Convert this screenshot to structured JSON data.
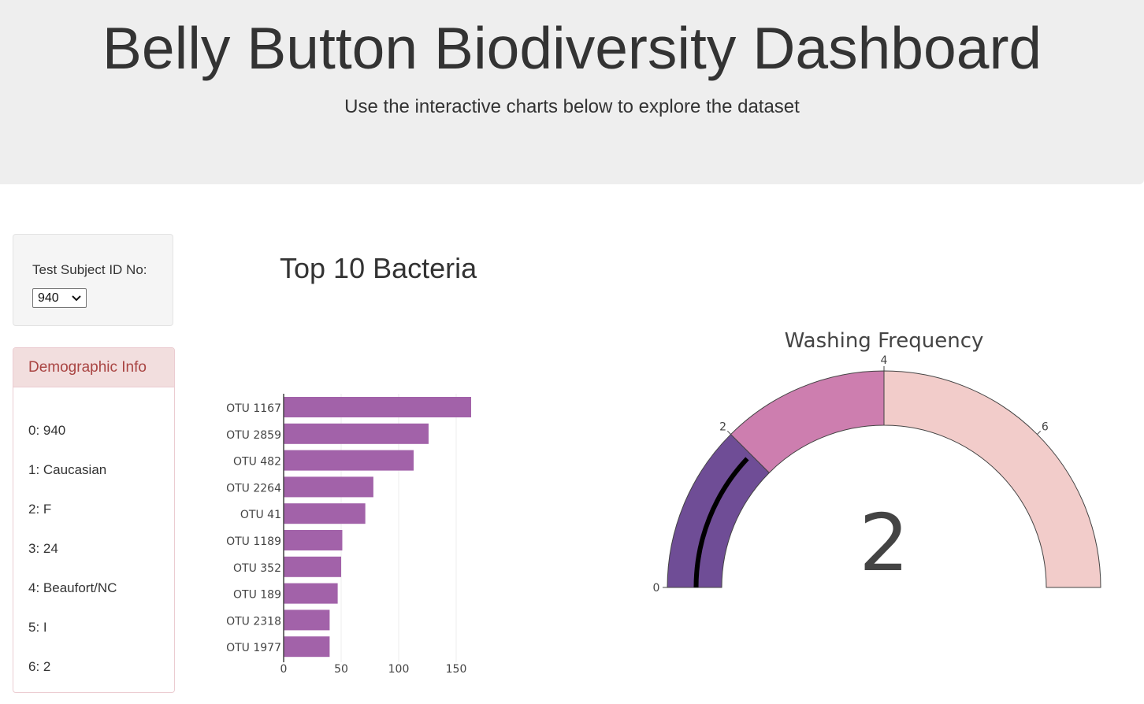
{
  "header": {
    "title": "Belly Button Biodiversity Dashboard",
    "subtitle": "Use the interactive charts below to explore the dataset"
  },
  "selector": {
    "label": "Test Subject ID No:",
    "selected": "940"
  },
  "demographics": {
    "heading": "Demographic Info",
    "rows": [
      "0: 940",
      "1: Caucasian",
      "2: F",
      "3: 24",
      "4: Beaufort/NC",
      "5: I",
      "6: 2"
    ]
  },
  "colors": {
    "bar": "#a262a9",
    "gauge_bands": [
      "#6f4d96",
      "#cd7eaf",
      "#f2ccca"
    ],
    "needle": "#000000",
    "panel_heading": "#a94442"
  },
  "chart_data": [
    {
      "type": "bar",
      "orientation": "horizontal",
      "title": "Top 10 Bacteria",
      "categories": [
        "OTU 1167",
        "OTU 2859",
        "OTU 482",
        "OTU 2264",
        "OTU 41",
        "OTU 1189",
        "OTU 352",
        "OTU 189",
        "OTU 2318",
        "OTU 1977"
      ],
      "values": [
        163,
        126,
        113,
        78,
        71,
        51,
        50,
        47,
        40,
        40
      ],
      "xlim": [
        0,
        163
      ],
      "xticks": [
        "0",
        "50",
        "100",
        "150"
      ],
      "grid": true
    },
    {
      "type": "gauge",
      "title": "Washing Frequency",
      "value": 2,
      "value_label": "2",
      "range": [
        0,
        8
      ],
      "ticks": [
        "0",
        "2",
        "4",
        "6"
      ],
      "bands": [
        [
          0,
          2
        ],
        [
          2,
          4
        ],
        [
          4,
          8
        ]
      ]
    }
  ]
}
